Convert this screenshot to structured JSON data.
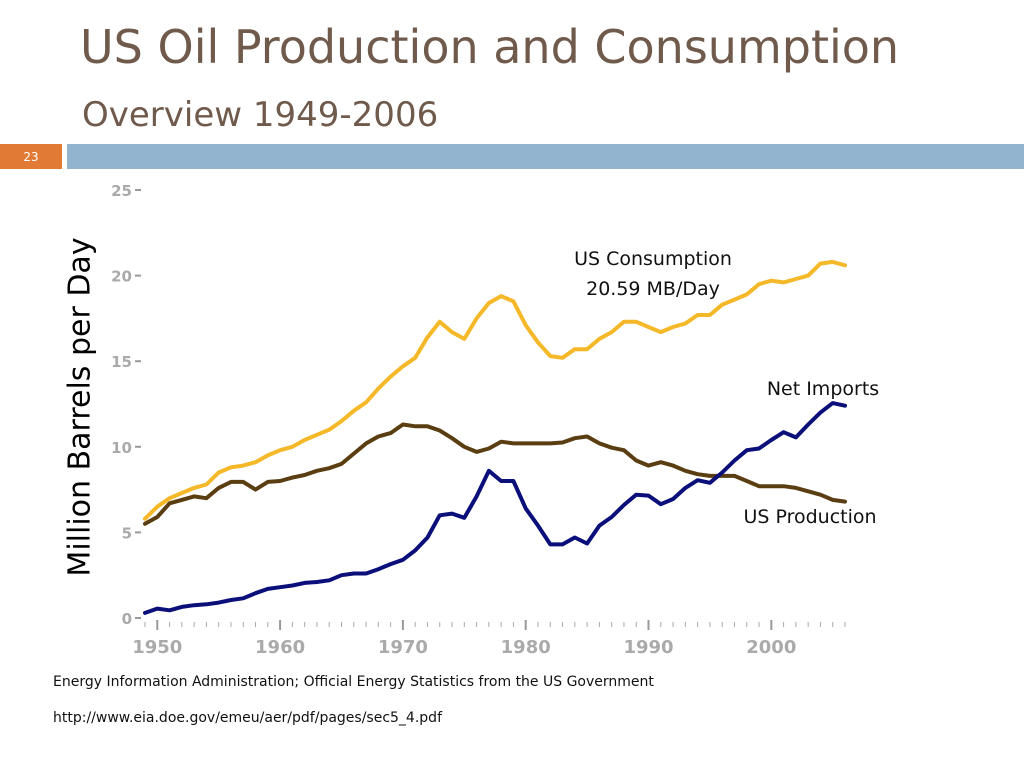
{
  "slide": {
    "title": "US Oil Production and Consumption",
    "subtitle": "Overview 1949-2006",
    "slide_number": "23",
    "accent_color": "#e07a35",
    "band_color": "#93b4cf",
    "title_color": "#6f5a4c"
  },
  "annotations": {
    "consumption_line1": "US Consumption",
    "consumption_line2": "20.59 MB/Day",
    "net_imports": "Net Imports",
    "production": "US Production"
  },
  "source": {
    "line1": "Energy Information Administration; Official Energy Statistics from the US Government",
    "line2": "http://www.eia.doe.gov/emeu/aer/pdf/pages/sec5_4.pdf"
  },
  "chart_data": {
    "type": "line",
    "ylabel": "Million Barrels per Day",
    "xlabel": "",
    "xlim": [
      1949,
      2006
    ],
    "ylim": [
      0,
      25
    ],
    "x_ticks": [
      1950,
      1960,
      1970,
      1980,
      1990,
      2000
    ],
    "y_ticks": [
      0,
      5,
      10,
      15,
      20,
      25
    ],
    "grid": false,
    "series": [
      {
        "name": "US Consumption",
        "color": "#f5b829",
        "x": [
          1949,
          1950,
          1951,
          1952,
          1953,
          1954,
          1955,
          1956,
          1957,
          1958,
          1959,
          1960,
          1961,
          1962,
          1963,
          1964,
          1965,
          1966,
          1967,
          1968,
          1969,
          1970,
          1971,
          1972,
          1973,
          1974,
          1975,
          1976,
          1977,
          1978,
          1979,
          1980,
          1981,
          1982,
          1983,
          1984,
          1985,
          1986,
          1987,
          1988,
          1989,
          1990,
          1991,
          1992,
          1993,
          1994,
          1995,
          1996,
          1997,
          1998,
          1999,
          2000,
          2001,
          2002,
          2003,
          2004,
          2005,
          2006
        ],
        "y": [
          5.8,
          6.5,
          7.0,
          7.3,
          7.6,
          7.8,
          8.5,
          8.8,
          8.9,
          9.1,
          9.5,
          9.8,
          10.0,
          10.4,
          10.7,
          11.0,
          11.5,
          12.1,
          12.6,
          13.4,
          14.1,
          14.7,
          15.2,
          16.4,
          17.3,
          16.7,
          16.3,
          17.5,
          18.4,
          18.8,
          18.5,
          17.1,
          16.1,
          15.3,
          15.2,
          15.7,
          15.7,
          16.3,
          16.7,
          17.3,
          17.3,
          17.0,
          16.7,
          17.0,
          17.2,
          17.7,
          17.7,
          18.3,
          18.6,
          18.9,
          19.5,
          19.7,
          19.6,
          19.8,
          20.0,
          20.7,
          20.8,
          20.6
        ]
      },
      {
        "name": "US Production",
        "color": "#5a3e12",
        "x": [
          1949,
          1950,
          1951,
          1952,
          1953,
          1954,
          1955,
          1956,
          1957,
          1958,
          1959,
          1960,
          1961,
          1962,
          1963,
          1964,
          1965,
          1966,
          1967,
          1968,
          1969,
          1970,
          1971,
          1972,
          1973,
          1974,
          1975,
          1976,
          1977,
          1978,
          1979,
          1980,
          1981,
          1982,
          1983,
          1984,
          1985,
          1986,
          1987,
          1988,
          1989,
          1990,
          1991,
          1992,
          1993,
          1994,
          1995,
          1996,
          1997,
          1998,
          1999,
          2000,
          2001,
          2002,
          2003,
          2004,
          2005,
          2006
        ],
        "y": [
          5.5,
          5.9,
          6.7,
          6.9,
          7.1,
          7.0,
          7.6,
          7.95,
          7.95,
          7.5,
          7.95,
          8.0,
          8.2,
          8.35,
          8.6,
          8.75,
          9.0,
          9.6,
          10.2,
          10.6,
          10.8,
          11.3,
          11.2,
          11.2,
          10.95,
          10.5,
          10.0,
          9.7,
          9.9,
          10.3,
          10.2,
          10.2,
          10.2,
          10.2,
          10.25,
          10.5,
          10.6,
          10.2,
          9.95,
          9.8,
          9.2,
          8.9,
          9.1,
          8.9,
          8.6,
          8.4,
          8.3,
          8.3,
          8.3,
          8.0,
          7.7,
          7.7,
          7.7,
          7.6,
          7.4,
          7.2,
          6.9,
          6.8
        ]
      },
      {
        "name": "Net Imports",
        "color": "#0a0f7a",
        "x": [
          1949,
          1950,
          1951,
          1952,
          1953,
          1954,
          1955,
          1956,
          1957,
          1958,
          1959,
          1960,
          1961,
          1962,
          1963,
          1964,
          1965,
          1966,
          1967,
          1968,
          1969,
          1970,
          1971,
          1972,
          1973,
          1974,
          1975,
          1976,
          1977,
          1978,
          1979,
          1980,
          1981,
          1982,
          1983,
          1984,
          1985,
          1986,
          1987,
          1988,
          1989,
          1990,
          1991,
          1992,
          1993,
          1994,
          1995,
          1996,
          1997,
          1998,
          1999,
          2000,
          2001,
          2002,
          2003,
          2004,
          2005,
          2006
        ],
        "y": [
          0.3,
          0.55,
          0.45,
          0.65,
          0.75,
          0.8,
          0.9,
          1.05,
          1.15,
          1.45,
          1.7,
          1.8,
          1.9,
          2.05,
          2.1,
          2.2,
          2.5,
          2.6,
          2.6,
          2.85,
          3.15,
          3.4,
          3.95,
          4.7,
          6.0,
          6.1,
          5.85,
          7.1,
          8.6,
          8.0,
          8.0,
          6.4,
          5.4,
          4.3,
          4.3,
          4.7,
          4.35,
          5.4,
          5.9,
          6.6,
          7.2,
          7.15,
          6.65,
          6.95,
          7.6,
          8.05,
          7.9,
          8.5,
          9.2,
          9.8,
          9.9,
          10.4,
          10.85,
          10.55,
          11.3,
          12.0,
          12.55,
          12.4
        ]
      }
    ]
  }
}
